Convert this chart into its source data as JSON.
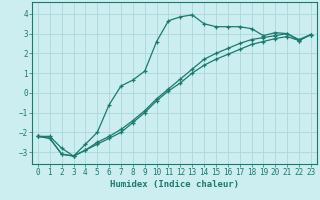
{
  "xlabel": "Humidex (Indice chaleur)",
  "bg_color": "#cceef0",
  "grid_color": "#aad8dc",
  "line_color": "#1a7a6e",
  "xlim": [
    -0.5,
    23.5
  ],
  "ylim": [
    -3.6,
    4.6
  ],
  "yticks": [
    -3,
    -2,
    -1,
    0,
    1,
    2,
    3,
    4
  ],
  "xticks": [
    0,
    1,
    2,
    3,
    4,
    5,
    6,
    7,
    8,
    9,
    10,
    11,
    12,
    13,
    14,
    15,
    16,
    17,
    18,
    19,
    20,
    21,
    22,
    23
  ],
  "curve1_x": [
    0,
    1,
    2,
    3,
    4,
    5,
    6,
    7,
    8,
    9,
    10,
    11,
    12,
    13,
    14,
    15,
    16,
    17,
    18,
    19,
    20,
    21,
    22,
    23
  ],
  "curve1_y": [
    -2.2,
    -2.2,
    -2.8,
    -3.2,
    -2.6,
    -2.0,
    -0.6,
    0.35,
    0.65,
    1.1,
    2.6,
    3.65,
    3.85,
    3.95,
    3.5,
    3.35,
    3.35,
    3.35,
    3.25,
    2.9,
    3.05,
    3.0,
    2.7,
    2.95
  ],
  "curve2_x": [
    0,
    1,
    2,
    3,
    4,
    5,
    6,
    7,
    8,
    9,
    10,
    11,
    12,
    13,
    14,
    15,
    16,
    17,
    18,
    19,
    20,
    21,
    22,
    23
  ],
  "curve2_y": [
    -2.2,
    -2.3,
    -3.1,
    -3.2,
    -2.9,
    -2.6,
    -2.3,
    -2.0,
    -1.5,
    -1.0,
    -0.4,
    0.1,
    0.5,
    1.0,
    1.4,
    1.7,
    1.95,
    2.2,
    2.45,
    2.6,
    2.75,
    2.85,
    2.65,
    2.95
  ],
  "curve3_x": [
    0,
    1,
    2,
    3,
    4,
    5,
    6,
    7,
    8,
    9,
    10,
    11,
    12,
    13,
    14,
    15,
    16,
    17,
    18,
    19,
    20,
    21,
    22,
    23
  ],
  "curve3_y": [
    -2.2,
    -2.3,
    -3.1,
    -3.2,
    -2.9,
    -2.5,
    -2.2,
    -1.85,
    -1.4,
    -0.9,
    -0.3,
    0.2,
    0.7,
    1.2,
    1.7,
    2.0,
    2.25,
    2.5,
    2.7,
    2.8,
    2.9,
    3.0,
    2.65,
    2.95
  ]
}
